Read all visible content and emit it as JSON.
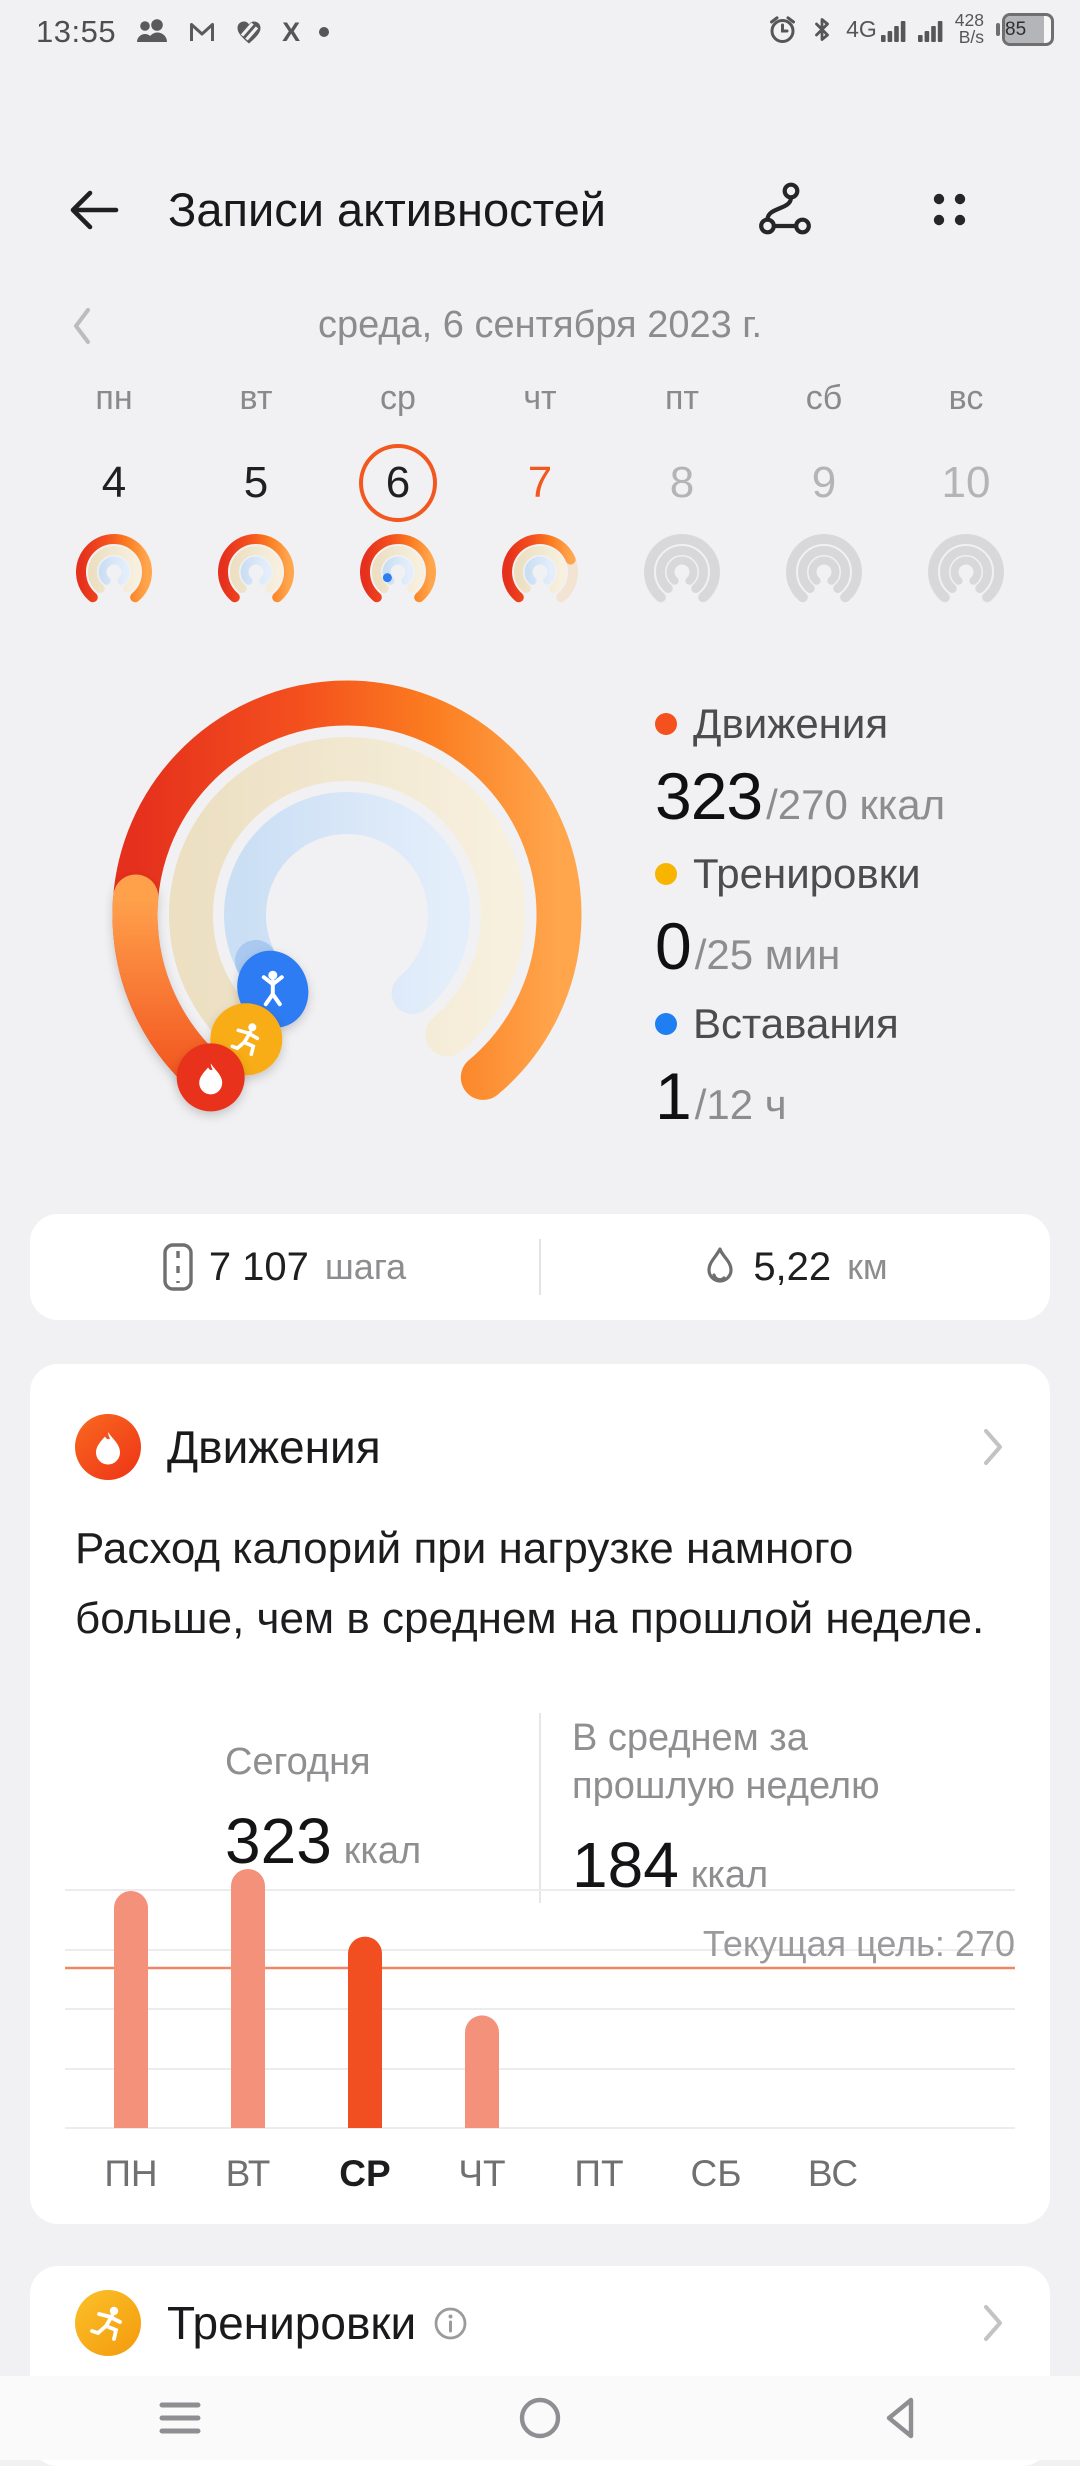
{
  "status_bar": {
    "time": "13:55",
    "network": "4G",
    "data_rate_value": "428",
    "data_rate_unit": "B/s",
    "battery_percent": "85"
  },
  "header": {
    "title": "Записи активностей"
  },
  "date_nav": {
    "date_label": "среда, 6 сентября 2023 г."
  },
  "week": {
    "days": [
      {
        "label": "пн",
        "date": "4",
        "ring": "full",
        "state": "past"
      },
      {
        "label": "вт",
        "date": "5",
        "ring": "full",
        "state": "past"
      },
      {
        "label": "ср",
        "date": "6",
        "ring": "full-dot",
        "state": "selected"
      },
      {
        "label": "чт",
        "date": "7",
        "ring": "partial",
        "state": "today"
      },
      {
        "label": "пт",
        "date": "8",
        "ring": "gray",
        "state": "future"
      },
      {
        "label": "сб",
        "date": "9",
        "ring": "gray",
        "state": "future"
      },
      {
        "label": "вс",
        "date": "10",
        "ring": "gray",
        "state": "future"
      }
    ]
  },
  "summary": {
    "rings": {
      "move_pct": 1.196,
      "exercise_pct": 0,
      "stand_pct": 0.083
    },
    "stats": [
      {
        "label": "Движения",
        "value": "323",
        "target": "/270 ккал",
        "color": "#f4511e"
      },
      {
        "label": "Тренировки",
        "value": "0",
        "target": "/25 мин",
        "color": "#f7b500"
      },
      {
        "label": "Вставания",
        "value": "1",
        "target": "/12 ч",
        "color": "#1e7ff2"
      }
    ]
  },
  "steps_card": {
    "steps_value": "7 107",
    "steps_unit": "шага",
    "distance_value": "5,22",
    "distance_unit": "км"
  },
  "move_card": {
    "title": "Движения",
    "description": "Расход калорий при нагрузке намного больше, чем в среднем на прошлой неделе.",
    "today_label": "Сегодня",
    "today_value": "323",
    "today_unit": "ккал",
    "avg_label": "В среднем за прошлую неделю",
    "avg_value": "184",
    "avg_unit": "ккал"
  },
  "chart_data": {
    "type": "bar",
    "categories": [
      "ПН",
      "ВТ",
      "СР",
      "ЧТ",
      "ПТ",
      "СБ",
      "ВС"
    ],
    "values": [
      400,
      437,
      323,
      190,
      0,
      0,
      0
    ],
    "selected_index": 2,
    "goal_line": {
      "label": "Текущая цель: 270",
      "value": 270
    },
    "ylim": [
      0,
      455
    ],
    "grid": true,
    "legend": false,
    "title": "",
    "xlabel": "",
    "ylabel": "",
    "bar_color": "#f3917b",
    "selected_bar_color": "#f14e21",
    "goal_line_color": "#ef8762"
  },
  "workout_card": {
    "title": "Тренировки"
  },
  "colors": {
    "page_bg": "#f1f1f3",
    "card_bg": "#ffffff",
    "accent_orange": "#f2571f",
    "move_ring_red": "#e5301d",
    "move_ring_orange": "#ffa64d",
    "exercise_track": "#f3ecd9",
    "stand_track": "#d3e4f6",
    "stand_blob": "#2f7cf3",
    "runner_cap": "#f8ad12",
    "flame_cap": "#e8321c"
  }
}
